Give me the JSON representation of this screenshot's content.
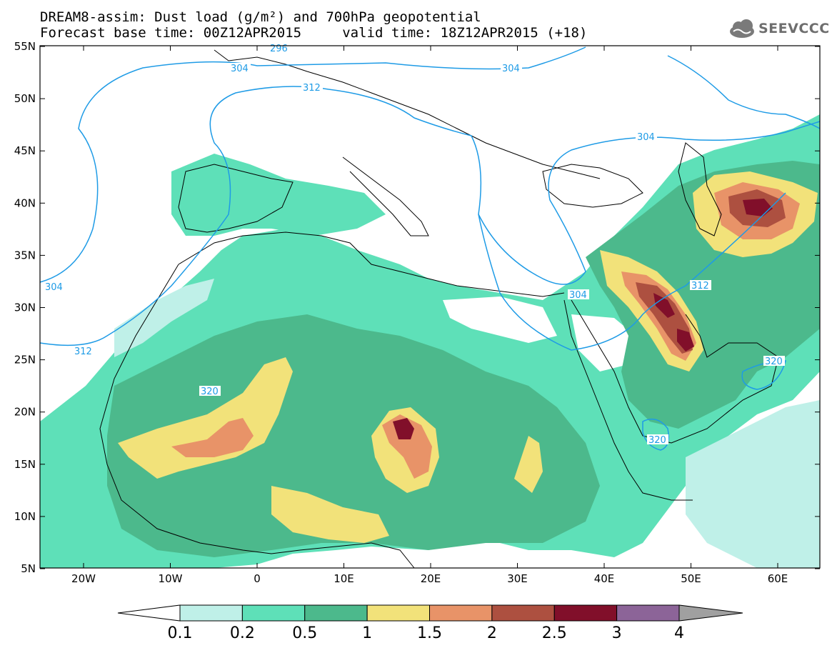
{
  "title": {
    "line1": "DREAM8-assim: Dust load (g/m²) and 700hPa geopotential",
    "line2": "Forecast base time: 00Z12APR2015     valid time: 18Z12APR2015 (+18)"
  },
  "logo": {
    "text": "SEEVCCC",
    "icon": "cloud-icon"
  },
  "axes": {
    "lat_labels": [
      "55N",
      "50N",
      "45N",
      "40N",
      "35N",
      "30N",
      "25N",
      "20N",
      "15N",
      "10N",
      "5N"
    ],
    "lon_labels": [
      "20W",
      "10W",
      "0",
      "10E",
      "20E",
      "30E",
      "40E",
      "50E",
      "60E"
    ]
  },
  "contours": {
    "labels": [
      "296",
      "304",
      "312",
      "320"
    ],
    "color": "#1e9be6"
  },
  "colorbar": {
    "tick_labels": [
      "0.1",
      "0.2",
      "0.5",
      "1",
      "1.5",
      "2",
      "2.5",
      "3",
      "4"
    ],
    "colors": [
      "#ffffff",
      "#bff0e8",
      "#5ee0b8",
      "#4cb98c",
      "#f2e27a",
      "#e89368",
      "#ad5040",
      "#810f2a",
      "#8c6498",
      "#a0a0a0"
    ]
  },
  "fill_colors": {
    "low": "#bff0e8",
    "light": "#5ee0b8",
    "mid": "#4cb98c",
    "yellow": "#f2e27a",
    "orange": "#e89368",
    "brown": "#ad5040",
    "maroon": "#810f2a"
  }
}
